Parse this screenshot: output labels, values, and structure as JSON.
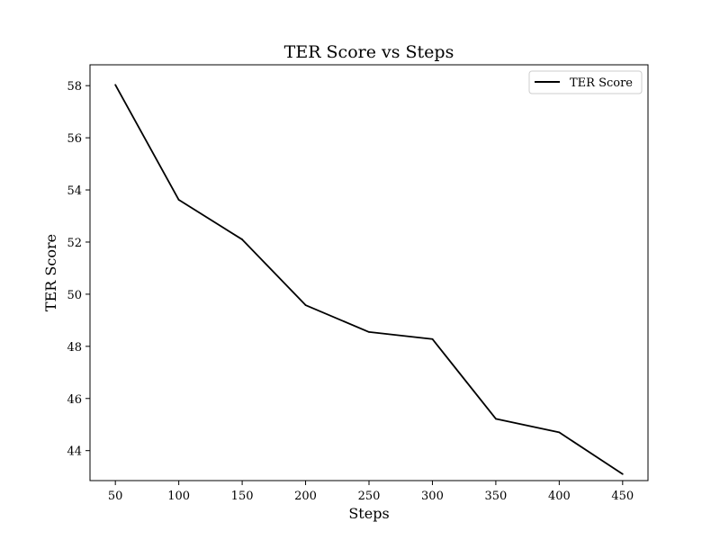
{
  "chart_data": {
    "type": "line",
    "title": "TER Score vs Steps",
    "xlabel": "Steps",
    "ylabel": "TER Score",
    "x": [
      50,
      100,
      150,
      200,
      250,
      300,
      350,
      400,
      450
    ],
    "series": [
      {
        "name": "TER Score",
        "color": "#000000",
        "values": [
          58.03,
          53.62,
          52.1,
          49.58,
          48.55,
          48.28,
          45.22,
          44.7,
          43.1
        ]
      }
    ],
    "xticks": [
      50,
      100,
      150,
      200,
      250,
      300,
      350,
      400,
      450
    ],
    "yticks": [
      44,
      46,
      48,
      50,
      52,
      54,
      56,
      58
    ],
    "xlim": [
      30,
      470
    ],
    "ylim": [
      42.85,
      58.8
    ],
    "grid": false,
    "legend_position": "top-right"
  }
}
